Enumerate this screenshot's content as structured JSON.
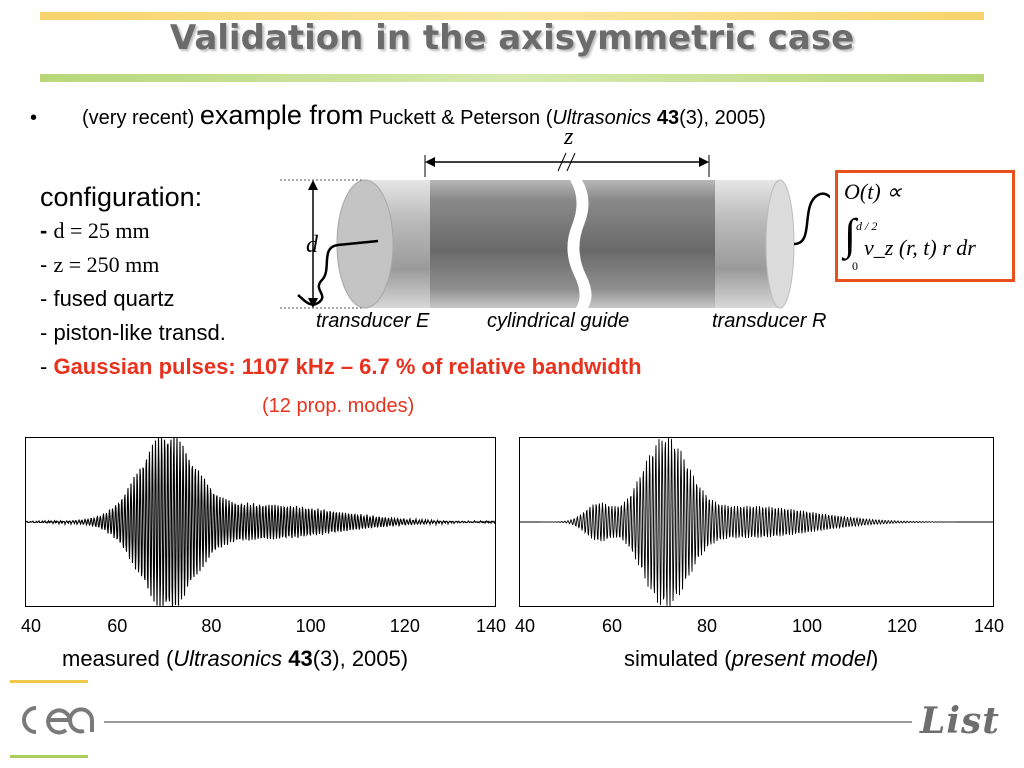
{
  "slide": {
    "title": "Validation in the axisymmetric case",
    "bullet": {
      "part1": "(very recent)",
      "part2": "example from",
      "part3": "Puckett & Peterson (",
      "journal": "Ultrasonics",
      "volume": "43",
      "issue": "(3), 2005)"
    },
    "config": {
      "heading": "configuration:",
      "d_line": "d = 25 mm",
      "z_line": "z = 250 mm",
      "material": "fused quartz",
      "transducer": "piston-like transd.",
      "pulses": "Gaussian pulses: 1107 kHz – 6.7 % of relative bandwidth",
      "modes": "(12 prop. modes)"
    }
  },
  "diagram": {
    "label_z": "z",
    "label_d": "d",
    "label_transducer_e": "transducer E",
    "label_guide": "cylindrical guide",
    "label_transducer_r": "transducer R",
    "formula_line1": "O(t) ∝",
    "formula_line2": "∫₀^{d/2} v_z(r,t) r dr",
    "formula_upper": "d / 2",
    "formula_lower": "0",
    "formula_body": "v_z (r, t) r dr"
  },
  "chart_data": [
    {
      "type": "line",
      "name": "measured",
      "x_ticks": [
        "40",
        "60",
        "80",
        "100",
        "120",
        "140"
      ],
      "xlim": [
        40,
        140
      ],
      "caption_main": "measured (",
      "caption_journal": "Ultrasonics",
      "caption_volume": "43",
      "caption_rest": "(3), 2005)"
    },
    {
      "type": "line",
      "name": "simulated",
      "x_ticks": [
        "40",
        "60",
        "80",
        "100",
        "120",
        "140"
      ],
      "xlim": [
        40,
        140
      ],
      "caption_main": "simulated (",
      "caption_italic": "present model",
      "caption_rest": ")"
    }
  ],
  "footer": {
    "logo_left": "cea",
    "logo_right": "List"
  },
  "colors": {
    "accent_red": "#e8321e",
    "title_gray": "#6b6b6b",
    "box_orange": "#e8501e"
  }
}
